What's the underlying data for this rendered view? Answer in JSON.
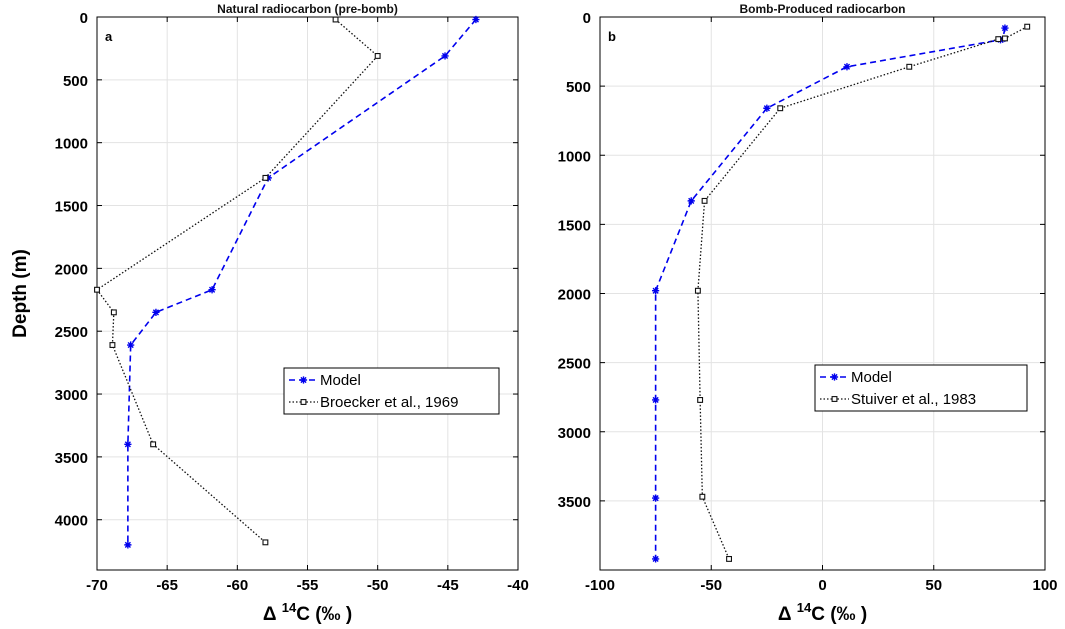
{
  "chart_data": [
    {
      "type": "line",
      "panel_label": "a",
      "title": "Natural radiocarbon (pre-bomb)",
      "xlabel_main": "Δ ",
      "xlabel_sup": "14",
      "xlabel_rest": "C (‰ )",
      "ylabel": "Depth (m)",
      "xlim": [
        -70,
        -40
      ],
      "ylim": [
        0,
        4400
      ],
      "y_inverted": true,
      "xticks": [
        -70,
        -65,
        -60,
        -55,
        -50,
        -45,
        -40
      ],
      "yticks": [
        0,
        500,
        1000,
        1500,
        2000,
        2500,
        3000,
        3500,
        4000
      ],
      "grid": true,
      "legend_position": "lower-right",
      "series": [
        {
          "name": "Model",
          "color": "#0000ee",
          "style": "dashed",
          "marker": "star",
          "x": [
            -43,
            -45.2,
            -57.8,
            -61.8,
            -65.8,
            -67.6,
            -67.8,
            -67.8
          ],
          "y": [
            20,
            310,
            1280,
            2170,
            2350,
            2610,
            3400,
            4200
          ]
        },
        {
          "name": "Broecker et al., 1969",
          "color": "#111111",
          "style": "dotted",
          "marker": "square",
          "x": [
            -53,
            -50,
            -58,
            -70,
            -68.8,
            -68.9,
            -66,
            -58
          ],
          "y": [
            20,
            310,
            1280,
            2170,
            2350,
            2610,
            3400,
            4180
          ]
        }
      ]
    },
    {
      "type": "line",
      "panel_label": "b",
      "title": "Bomb-Produced radiocarbon",
      "xlabel_main": "Δ ",
      "xlabel_sup": "14",
      "xlabel_rest": "C (‰ )",
      "ylabel": "",
      "xlim": [
        -100,
        100
      ],
      "ylim": [
        0,
        4000
      ],
      "y_inverted": true,
      "xticks": [
        -100,
        -50,
        0,
        50,
        100
      ],
      "yticks": [
        0,
        500,
        1000,
        1500,
        2000,
        2500,
        3000,
        3500
      ],
      "grid": true,
      "legend_position": "lower-right",
      "series": [
        {
          "name": "Model",
          "color": "#0000ee",
          "style": "dashed",
          "marker": "star",
          "x": [
            82,
            81,
            80,
            11,
            -25,
            -59,
            -75,
            -75,
            -75,
            -75
          ],
          "y": [
            80,
            160,
            165,
            360,
            660,
            1330,
            1980,
            2770,
            3480,
            3920
          ]
        },
        {
          "name": "Stuiver et al., 1983",
          "color": "#111111",
          "style": "dotted",
          "marker": "square",
          "x": [
            92,
            82,
            79,
            39,
            -19,
            -53,
            -56,
            -55,
            -54,
            -42
          ],
          "y": [
            70,
            155,
            160,
            360,
            660,
            1330,
            1980,
            2770,
            3470,
            3920
          ]
        }
      ]
    }
  ]
}
